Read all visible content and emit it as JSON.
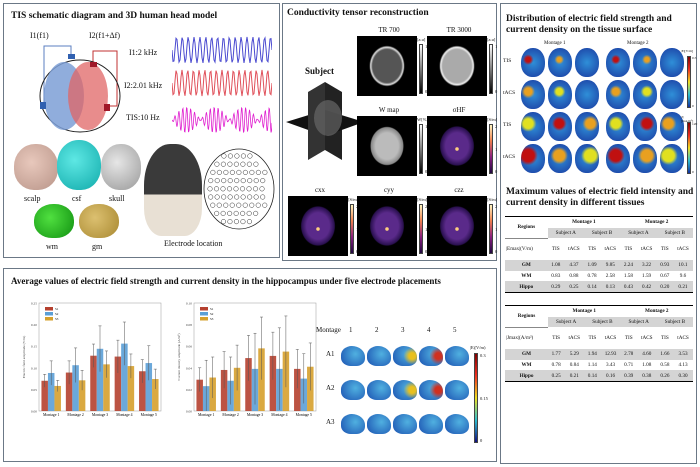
{
  "panel_a": {
    "title": "TIS schematic diagram and 3D human head model",
    "i1_label": "I1(f1)",
    "i2_label": "I2(f1+Δf)",
    "waves": [
      {
        "label": "I1:2 kHz",
        "color": "#4a4ad0"
      },
      {
        "label": "I2:2.01 kHz",
        "color": "#e0505a"
      },
      {
        "label": "TIS:10 Hz",
        "color": "#e020d0"
      }
    ],
    "tissues": [
      "scalp",
      "csf",
      "skull",
      "wm",
      "gm"
    ],
    "electrode_label": "Electrode location"
  },
  "panel_b": {
    "title": "Conductivity tensor reconstruction",
    "subject": "Subject",
    "images": [
      {
        "title": "TR 700",
        "unit": "[a.u]",
        "max": "1",
        "min": "0"
      },
      {
        "title": "TR 3000",
        "unit": "[a.u]",
        "max": "1",
        "min": "0"
      },
      {
        "title": "W map",
        "unit": "W[%]",
        "max": "100",
        "min": "0"
      },
      {
        "title": "σHF",
        "unit": "[S/m]",
        "max": "2",
        "mid": "1",
        "min": "0"
      },
      {
        "title": "cxx",
        "unit": "[S/m]",
        "max": "2",
        "mid": "1",
        "min": "0"
      },
      {
        "title": "cyy",
        "unit": "[S/m]",
        "max": "2",
        "mid": "1",
        "min": "0"
      },
      {
        "title": "czz",
        "unit": "[S/m]",
        "max": "2",
        "mid": "1",
        "min": "0"
      }
    ]
  },
  "panel_c": {
    "title": "Distribution of electric field strength and current density on the tissue surface",
    "montages": [
      "Montage 1",
      "Montage 2"
    ],
    "rows": [
      "TIS",
      "tACS",
      "TIS",
      "tACS"
    ],
    "cbar1": {
      "unit": "|E|[V/m]",
      "max": "0.5",
      "min": "0"
    },
    "cbar2": {
      "unit": "|J|[mA/m²]",
      "max": "120",
      "min": "0"
    },
    "table_title": "Maximum values of electric field intensity and current density in different tissues",
    "tables": [
      {
        "regions": "Regions",
        "montages": [
          "Montage 1",
          "Montage 2"
        ],
        "subjects": [
          "Subject A",
          "Subject B",
          "Subject A",
          "Subject B"
        ],
        "quantity": "|Emax|(V/m)",
        "methods": [
          "TIS",
          "tACS",
          "TIS",
          "tACS",
          "TIS",
          "tACS",
          "TIS",
          "tACS"
        ],
        "rows": [
          {
            "name": "GM",
            "values": [
              "1.08",
              "4.37",
              "1.09",
              "9.85",
              "2.24",
              "3.22",
              "0.93",
              "10.1"
            ]
          },
          {
            "name": "WM",
            "values": [
              "0.83",
              "0.88",
              "0.78",
              "2.58",
              "1.58",
              "1.59",
              "0.67",
              "9.6"
            ]
          },
          {
            "name": "Hippo",
            "values": [
              "0.29",
              "0.25",
              "0.14",
              "0.13",
              "0.43",
              "0.42",
              "0.20",
              "0.21"
            ]
          }
        ]
      },
      {
        "regions": "Regions",
        "montages": [
          "Montage 1",
          "Montage 2"
        ],
        "subjects": [
          "Subject A",
          "Subject B",
          "Subject A",
          "Subject B"
        ],
        "quantity": "|Jmax|(A/m²)",
        "methods": [
          "TIS",
          "tACS",
          "TIS",
          "tACS",
          "TIS",
          "tACS",
          "TIS",
          "tACS"
        ],
        "rows": [
          {
            "name": "GM",
            "values": [
              "1.77",
              "5.29",
              "1.94",
              "12.93",
              "2.78",
              "4.60",
              "1.66",
              "3.53"
            ]
          },
          {
            "name": "WM",
            "values": [
              "0.78",
              "0.84",
              "1.14",
              "3.43",
              "0.71",
              "1.08",
              "0.58",
              "4.13"
            ]
          },
          {
            "name": "Hippo",
            "values": [
              "0.25",
              "0.21",
              "0.14",
              "0.16",
              "0.39",
              "0.38",
              "0.26",
              "0.30"
            ]
          }
        ]
      }
    ]
  },
  "panel_d": {
    "title": "Average values of electric field strength and current density in the hippocampus under five electrode placements",
    "montage_label": "Montage",
    "montage_nums": [
      "1",
      "2",
      "3",
      "4",
      "5"
    ],
    "rows": [
      "A1",
      "A2",
      "A3"
    ],
    "cbar": {
      "unit": "|E|(V/m)",
      "max": "0.3",
      "mid": "0.15",
      "min": "0"
    }
  },
  "chart_data": [
    {
      "type": "bar",
      "categories": [
        "Montage 1",
        "Montage 2",
        "Montage 3",
        "Montage 4",
        "Montage 5"
      ],
      "ylabel": "Electric field amplitude (V/m)",
      "ylim": [
        0,
        0.25
      ],
      "yticks": [
        "0.00",
        "0.05",
        "0.10",
        "0.15",
        "0.20",
        "0.25"
      ],
      "legend": "top-left",
      "colors": [
        "#b5402f",
        "#5b9fd6",
        "#d6a02c"
      ],
      "series": [
        {
          "name": "S1",
          "values": [
            0.07,
            0.089,
            0.128,
            0.126,
            0.092
          ],
          "errors": [
            0.015,
            0.027,
            0.027,
            0.038,
            0.027
          ]
        },
        {
          "name": "S2",
          "values": [
            0.088,
            0.106,
            0.144,
            0.156,
            0.111
          ],
          "errors": [
            0.028,
            0.04,
            0.053,
            0.05,
            0.04
          ]
        },
        {
          "name": "S3",
          "values": [
            0.058,
            0.071,
            0.108,
            0.104,
            0.074
          ],
          "errors": [
            0.013,
            0.023,
            0.031,
            0.028,
            0.023
          ]
        }
      ]
    },
    {
      "type": "bar",
      "categories": [
        "Montage 1",
        "Montage 2",
        "Montage 3",
        "Montage 4",
        "Montage 5"
      ],
      "ylabel": "Current density amplitude (A/m²)",
      "ylim": [
        0,
        0.1
      ],
      "yticks": [
        "0.00",
        "0.02",
        "0.04",
        "0.06",
        "0.08",
        "0.10"
      ],
      "legend": "top-left",
      "colors": [
        "#b5402f",
        "#5b9fd6",
        "#d6a02c"
      ],
      "series": [
        {
          "name": "S1",
          "values": [
            0.029,
            0.038,
            0.049,
            0.051,
            0.039
          ],
          "errors": [
            0.011,
            0.017,
            0.021,
            0.022,
            0.018
          ]
        },
        {
          "name": "S2",
          "values": [
            0.023,
            0.028,
            0.039,
            0.039,
            0.03
          ],
          "errors": [
            0.024,
            0.022,
            0.033,
            0.038,
            0.023
          ]
        },
        {
          "name": "S3",
          "values": [
            0.031,
            0.04,
            0.058,
            0.055,
            0.041
          ],
          "errors": [
            0.019,
            0.021,
            0.029,
            0.033,
            0.022
          ]
        }
      ]
    }
  ]
}
